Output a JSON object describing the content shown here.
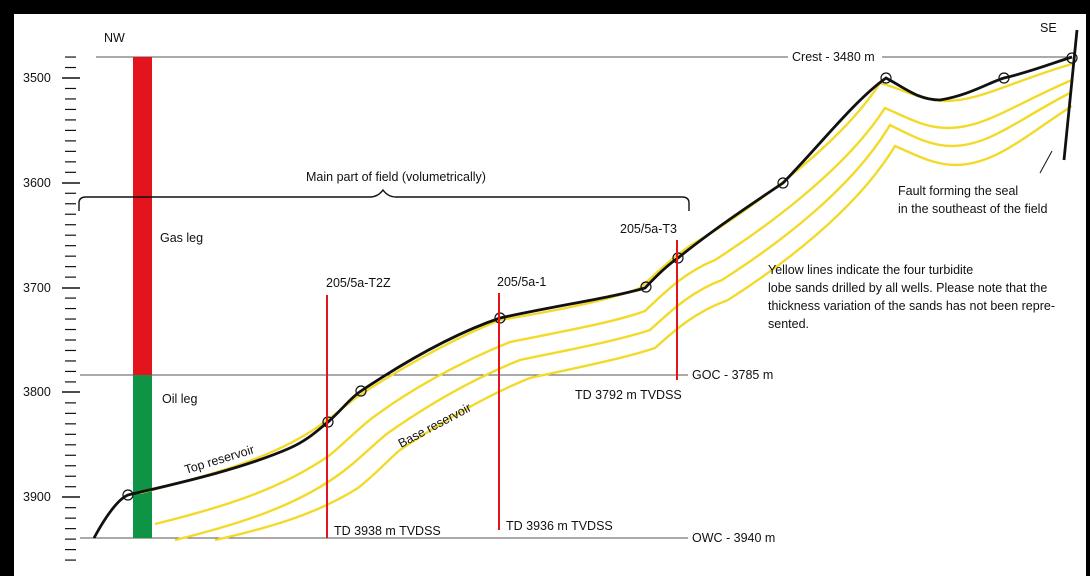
{
  "directions": {
    "left": "NW",
    "right": "SE"
  },
  "depth_axis": {
    "ticks": [
      "3500",
      "3600",
      "3700",
      "3800",
      "3900"
    ]
  },
  "contacts": {
    "crest": "Crest - 3480 m",
    "goc": "GOC - 3785 m",
    "owc": "OWC - 3940 m"
  },
  "legs": {
    "gas": "Gas leg",
    "oil": "Oil leg"
  },
  "main_part": "Main part of field (volumetrically)",
  "wells": [
    {
      "name": "205/5a-T2Z",
      "td": "TD 3938 m TVDSS"
    },
    {
      "name": "205/5a-1",
      "td": "TD 3936 m TVDSS"
    },
    {
      "name": "205/5a-T3",
      "td": "TD 3792 m TVDSS"
    }
  ],
  "reservoir_labels": {
    "top": "Top reservoir",
    "base": "Base reservoir"
  },
  "fault_note": [
    "Fault forming the seal",
    "in the southeast of the field"
  ],
  "legend_note": [
    "Yellow lines indicate the four turbidite",
    "lobe sands drilled by all wells. Please note that the",
    "thickness variation of the sands has not been repre-",
    "sented."
  ],
  "colors": {
    "gas": "#E3141B",
    "oil": "#0E9444",
    "sand": "#F3DA2A",
    "well": "#E3141B",
    "horizon": "#111111"
  }
}
